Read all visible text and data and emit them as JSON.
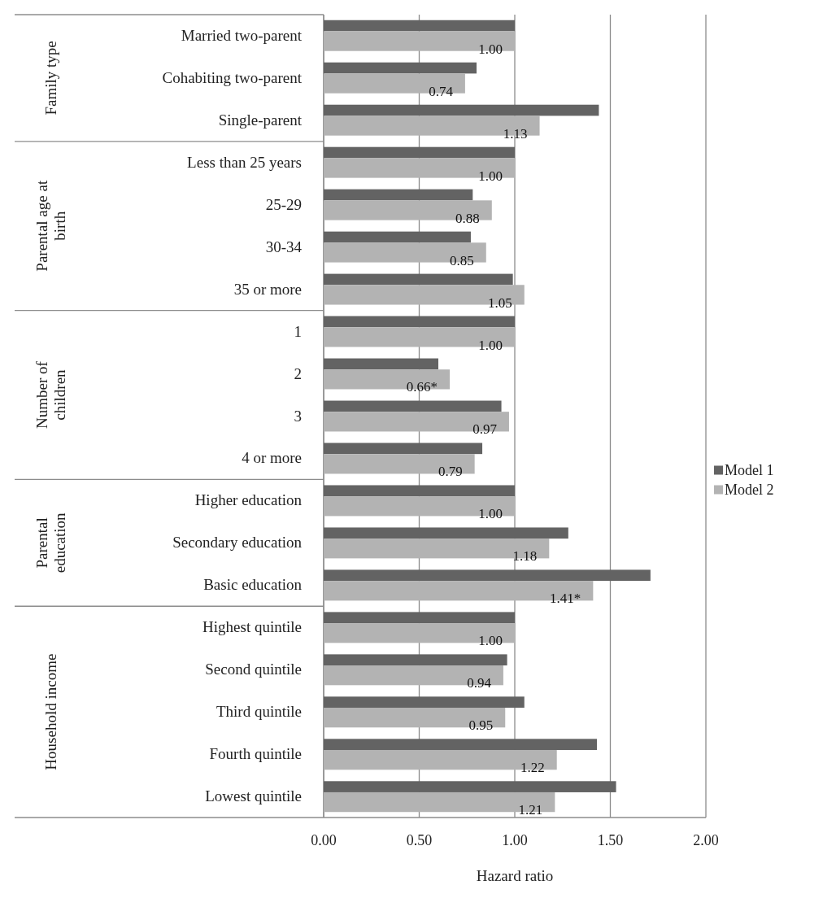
{
  "chart_data": {
    "type": "bar",
    "orientation": "horizontal",
    "xlabel": "Hazard ratio",
    "categories": [
      "Married two-parent",
      "Cohabiting two-parent",
      "Single-parent",
      "Less than 25 years",
      "25-29",
      "30-34",
      "35 or more",
      "1",
      "2",
      "3",
      "4 or more",
      "Higher education",
      "Secondary education",
      "Basic education",
      "Highest quintile",
      "Second quintile",
      "Third quintile",
      "Fourth quintile",
      "Lowest quintile"
    ],
    "series": [
      {
        "name": "Model 1",
        "color": "#636363",
        "values": [
          1.0,
          0.8,
          1.44,
          1.0,
          0.78,
          0.77,
          0.99,
          1.0,
          0.6,
          0.93,
          0.83,
          1.0,
          1.28,
          1.71,
          1.0,
          0.96,
          1.05,
          1.43,
          1.53
        ]
      },
      {
        "name": "Model 2",
        "color": "#b3b3b3",
        "values": [
          1.0,
          0.74,
          1.13,
          1.0,
          0.88,
          0.85,
          1.05,
          1.0,
          0.66,
          0.97,
          0.79,
          1.0,
          1.18,
          1.41,
          1.0,
          0.94,
          0.95,
          1.22,
          1.21
        ],
        "value_labels": [
          "1.00",
          "0.74",
          "1.13",
          "1.00",
          "0.88",
          "0.85",
          "1.05",
          "1.00",
          "0.66*",
          "0.97",
          "0.79",
          "1.00",
          "1.18",
          "1.41*",
          "1.00",
          "0.94",
          "0.95",
          "1.22",
          "1.21"
        ]
      }
    ],
    "xlim": [
      0,
      2
    ],
    "xticks": [
      {
        "value": 0,
        "label": "0.00"
      },
      {
        "value": 0.5,
        "label": "0.50"
      },
      {
        "value": 1,
        "label": "1.00"
      },
      {
        "value": 1.5,
        "label": "1.50"
      },
      {
        "value": 2,
        "label": "2.00"
      }
    ],
    "grid": "x",
    "legend": "right",
    "annotations": [
      "Family type",
      "Parental age at birth",
      "Number of children",
      "Parental education",
      "Household income"
    ]
  }
}
